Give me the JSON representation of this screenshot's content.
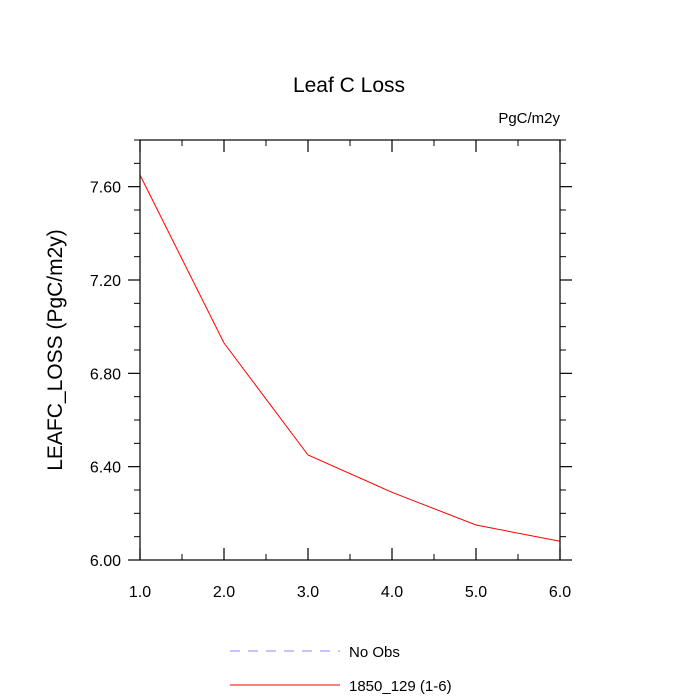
{
  "chart_data": {
    "type": "line",
    "title": "Leaf C Loss",
    "units": "PgC/m2y",
    "xlabel": "",
    "ylabel": "LEAFC_LOSS  (PgC/m2y)",
    "xlim": [
      1.0,
      6.0
    ],
    "ylim": [
      6.0,
      7.8
    ],
    "x_ticks": [
      1.0,
      2.0,
      3.0,
      4.0,
      5.0,
      6.0
    ],
    "x_tick_labels": [
      "1.0",
      "2.0",
      "3.0",
      "4.0",
      "5.0",
      "6.0"
    ],
    "y_ticks": [
      6.0,
      6.4,
      6.8,
      7.2,
      7.6
    ],
    "y_tick_labels": [
      "6.00",
      "6.40",
      "6.80",
      "7.20",
      "7.60"
    ],
    "grid": false,
    "legend_position": "bottom",
    "series": [
      {
        "name": "1850_129 (1-6)",
        "color": "#ff0000",
        "dash": "solid",
        "x": [
          1.0,
          2.0,
          3.0,
          4.0,
          5.0,
          6.0
        ],
        "values": [
          7.65,
          6.93,
          6.45,
          6.29,
          6.15,
          6.08
        ]
      }
    ],
    "legend": [
      {
        "label": "No Obs",
        "color": "#8888ff",
        "dash": "dashed"
      },
      {
        "label": "1850_129 (1-6)",
        "color": "#ff0000",
        "dash": "solid"
      }
    ]
  }
}
